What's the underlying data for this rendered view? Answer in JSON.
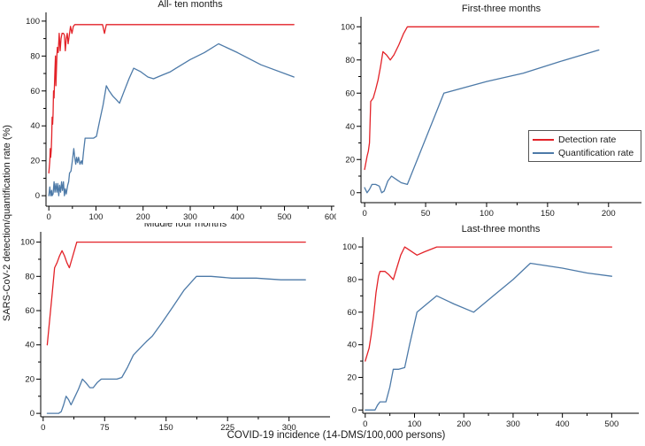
{
  "figure": {
    "x_axis_label": "COVID-19 incidence (14-DMS/100,000 persons)",
    "y_axis_label": "SARS-CoV-2 detection/quantification rate (%)"
  },
  "colors": {
    "detection": "#e32228",
    "quantification": "#4d7aa8",
    "axis": "#000000",
    "text": "#1a1a1a"
  },
  "legend": {
    "items": [
      {
        "label": "Detection rate",
        "color_key": "detection"
      },
      {
        "label": "Quantification rate",
        "color_key": "quantification"
      }
    ]
  },
  "chart_data": [
    {
      "id": "all-ten-months",
      "type": "line",
      "title": "All- ten months",
      "xlabel": "",
      "ylabel": "",
      "xlim": [
        -6,
        606
      ],
      "ylim": [
        -6,
        105
      ],
      "x_ticks": [
        0,
        100,
        200,
        300,
        400,
        500,
        600
      ],
      "y_ticks": [
        0,
        20,
        40,
        60,
        80,
        100
      ],
      "grid": false,
      "series": [
        {
          "name": "Detection rate",
          "color_key": "detection",
          "points": [
            [
              0,
              13
            ],
            [
              2,
              20
            ],
            [
              3,
              27
            ],
            [
              4,
              22
            ],
            [
              5,
              26
            ],
            [
              6,
              33
            ],
            [
              7,
              45
            ],
            [
              8,
              41
            ],
            [
              9,
              47
            ],
            [
              10,
              60
            ],
            [
              11,
              56
            ],
            [
              13,
              72
            ],
            [
              14,
              80
            ],
            [
              15,
              63
            ],
            [
              17,
              80
            ],
            [
              18,
              85
            ],
            [
              20,
              82
            ],
            [
              22,
              93
            ],
            [
              24,
              83
            ],
            [
              26,
              90
            ],
            [
              28,
              93
            ],
            [
              31,
              93
            ],
            [
              33,
              92
            ],
            [
              35,
              83
            ],
            [
              37,
              90
            ],
            [
              39,
              93
            ],
            [
              41,
              87
            ],
            [
              44,
              93
            ],
            [
              46,
              97
            ],
            [
              49,
              93
            ],
            [
              52,
              97
            ],
            [
              55,
              98
            ],
            [
              60,
              98
            ],
            [
              70,
              98
            ],
            [
              90,
              98
            ],
            [
              110,
              98
            ],
            [
              114,
              98
            ],
            [
              118,
              93
            ],
            [
              122,
              98
            ],
            [
              150,
              98
            ],
            [
              200,
              98
            ],
            [
              300,
              98
            ],
            [
              400,
              98
            ],
            [
              520,
              98
            ]
          ]
        },
        {
          "name": "Quantification rate",
          "color_key": "quantification",
          "points": [
            [
              0,
              0
            ],
            [
              2,
              5
            ],
            [
              4,
              0
            ],
            [
              6,
              3
            ],
            [
              7,
              0
            ],
            [
              9,
              1
            ],
            [
              11,
              8
            ],
            [
              13,
              2
            ],
            [
              15,
              7
            ],
            [
              17,
              2
            ],
            [
              19,
              7
            ],
            [
              21,
              0
            ],
            [
              23,
              6
            ],
            [
              25,
              2
            ],
            [
              27,
              8
            ],
            [
              29,
              3
            ],
            [
              31,
              8
            ],
            [
              33,
              0
            ],
            [
              35,
              4
            ],
            [
              37,
              1
            ],
            [
              40,
              6
            ],
            [
              42,
              8
            ],
            [
              44,
              13
            ],
            [
              47,
              14
            ],
            [
              50,
              20
            ],
            [
              53,
              27
            ],
            [
              55,
              22
            ],
            [
              57,
              18
            ],
            [
              59,
              22
            ],
            [
              61,
              19
            ],
            [
              63,
              22
            ],
            [
              66,
              18
            ],
            [
              69,
              20
            ],
            [
              71,
              18
            ],
            [
              74,
              26
            ],
            [
              77,
              33
            ],
            [
              82,
              33
            ],
            [
              88,
              33
            ],
            [
              95,
              33
            ],
            [
              101,
              34
            ],
            [
              108,
              43
            ],
            [
              115,
              52
            ],
            [
              122,
              63
            ],
            [
              128,
              60
            ],
            [
              136,
              57
            ],
            [
              143,
              55
            ],
            [
              150,
              53
            ],
            [
              160,
              60
            ],
            [
              170,
              67
            ],
            [
              180,
              73
            ],
            [
              195,
              71
            ],
            [
              210,
              68
            ],
            [
              222,
              67
            ],
            [
              240,
              69
            ],
            [
              258,
              71
            ],
            [
              270,
              73
            ],
            [
              300,
              78
            ],
            [
              330,
              82
            ],
            [
              360,
              87
            ],
            [
              400,
              82
            ],
            [
              450,
              75
            ],
            [
              520,
              68
            ]
          ]
        }
      ]
    },
    {
      "id": "first-three-months",
      "type": "line",
      "title": "First-three months",
      "xlabel": "",
      "ylabel": "",
      "xlim": [
        -3,
        227
      ],
      "ylim": [
        -6,
        106
      ],
      "x_ticks": [
        0,
        50,
        100,
        150,
        200
      ],
      "y_ticks": [
        0,
        20,
        40,
        60,
        80,
        100
      ],
      "grid": false,
      "legend_position": "middle-right",
      "series": [
        {
          "name": "Detection rate",
          "color_key": "detection",
          "points": [
            [
              0,
              14
            ],
            [
              2,
              22
            ],
            [
              3,
              25
            ],
            [
              4,
              30
            ],
            [
              5,
              55
            ],
            [
              7,
              57
            ],
            [
              9,
              62
            ],
            [
              11,
              68
            ],
            [
              13,
              76
            ],
            [
              15,
              85
            ],
            [
              18,
              83
            ],
            [
              21,
              80
            ],
            [
              24,
              83
            ],
            [
              28,
              89
            ],
            [
              32,
              96
            ],
            [
              35,
              100
            ],
            [
              60,
              100
            ],
            [
              100,
              100
            ],
            [
              150,
              100
            ],
            [
              192,
              100
            ]
          ]
        },
        {
          "name": "Quantification rate",
          "color_key": "quantification",
          "points": [
            [
              0,
              3
            ],
            [
              2,
              0
            ],
            [
              4,
              2
            ],
            [
              6,
              5
            ],
            [
              9,
              5
            ],
            [
              12,
              4
            ],
            [
              14,
              0
            ],
            [
              16,
              1
            ],
            [
              19,
              7
            ],
            [
              22,
              10
            ],
            [
              26,
              8
            ],
            [
              30,
              6
            ],
            [
              35,
              5
            ],
            [
              65,
              60
            ],
            [
              100,
              67
            ],
            [
              130,
              72
            ],
            [
              160,
              79
            ],
            [
              192,
              86
            ]
          ]
        }
      ]
    },
    {
      "id": "middle-four-months",
      "type": "line",
      "title": "Middle four months",
      "xlabel": "",
      "ylabel": "",
      "xlim": [
        -3,
        350
      ],
      "ylim": [
        -2,
        106
      ],
      "x_ticks": [
        0,
        75,
        150,
        225,
        300
      ],
      "y_ticks": [
        0,
        20,
        40,
        60,
        80,
        100
      ],
      "grid": false,
      "series": [
        {
          "name": "Detection rate",
          "color_key": "detection",
          "points": [
            [
              5,
              40
            ],
            [
              8,
              55
            ],
            [
              11,
              70
            ],
            [
              14,
              85
            ],
            [
              17,
              88
            ],
            [
              20,
              92
            ],
            [
              23,
              95
            ],
            [
              26,
              92
            ],
            [
              29,
              88
            ],
            [
              32,
              85
            ],
            [
              35,
              90
            ],
            [
              38,
              95
            ],
            [
              41,
              100
            ],
            [
              60,
              100
            ],
            [
              120,
              100
            ],
            [
              200,
              100
            ],
            [
              320,
              100
            ]
          ]
        },
        {
          "name": "Quantification rate",
          "color_key": "quantification",
          "points": [
            [
              5,
              0
            ],
            [
              10,
              0
            ],
            [
              15,
              0
            ],
            [
              19,
              0
            ],
            [
              22,
              1
            ],
            [
              25,
              5
            ],
            [
              28,
              10
            ],
            [
              31,
              8
            ],
            [
              34,
              5
            ],
            [
              38,
              9
            ],
            [
              43,
              14
            ],
            [
              48,
              20
            ],
            [
              52,
              18
            ],
            [
              57,
              15
            ],
            [
              61,
              15
            ],
            [
              66,
              18
            ],
            [
              71,
              20
            ],
            [
              80,
              20
            ],
            [
              90,
              20
            ],
            [
              96,
              21
            ],
            [
              103,
              27
            ],
            [
              110,
              34
            ],
            [
              118,
              38
            ],
            [
              126,
              42
            ],
            [
              133,
              45
            ],
            [
              145,
              53
            ],
            [
              158,
              62
            ],
            [
              172,
              72
            ],
            [
              187,
              80
            ],
            [
              205,
              80
            ],
            [
              230,
              79
            ],
            [
              260,
              79
            ],
            [
              290,
              78
            ],
            [
              320,
              78
            ]
          ]
        }
      ]
    },
    {
      "id": "last-three-months",
      "type": "line",
      "title": "Last-three months",
      "xlabel": "",
      "ylabel": "",
      "xlim": [
        -5,
        555
      ],
      "ylim": [
        -2,
        106
      ],
      "x_ticks": [
        0,
        100,
        200,
        300,
        400,
        500
      ],
      "y_ticks": [
        0,
        20,
        40,
        60,
        80,
        100
      ],
      "grid": false,
      "series": [
        {
          "name": "Detection rate",
          "color_key": "detection",
          "points": [
            [
              0,
              30
            ],
            [
              4,
              34
            ],
            [
              8,
              38
            ],
            [
              12,
              46
            ],
            [
              17,
              58
            ],
            [
              22,
              72
            ],
            [
              27,
              82
            ],
            [
              30,
              85
            ],
            [
              40,
              85
            ],
            [
              48,
              83
            ],
            [
              57,
              80
            ],
            [
              64,
              87
            ],
            [
              72,
              95
            ],
            [
              80,
              100
            ],
            [
              90,
              98
            ],
            [
              105,
              95
            ],
            [
              120,
              97
            ],
            [
              145,
              100
            ],
            [
              220,
              100
            ],
            [
              335,
              100
            ],
            [
              500,
              100
            ]
          ]
        },
        {
          "name": "Quantification rate",
          "color_key": "quantification",
          "points": [
            [
              0,
              0
            ],
            [
              12,
              0
            ],
            [
              20,
              0
            ],
            [
              25,
              3
            ],
            [
              30,
              5
            ],
            [
              42,
              5
            ],
            [
              50,
              14
            ],
            [
              57,
              25
            ],
            [
              68,
              25
            ],
            [
              80,
              26
            ],
            [
              90,
              40
            ],
            [
              105,
              60
            ],
            [
              125,
              65
            ],
            [
              145,
              70
            ],
            [
              180,
              65
            ],
            [
              220,
              60
            ],
            [
              260,
              70
            ],
            [
              300,
              80
            ],
            [
              335,
              90
            ],
            [
              400,
              87
            ],
            [
              450,
              84
            ],
            [
              500,
              82
            ]
          ]
        }
      ]
    }
  ]
}
